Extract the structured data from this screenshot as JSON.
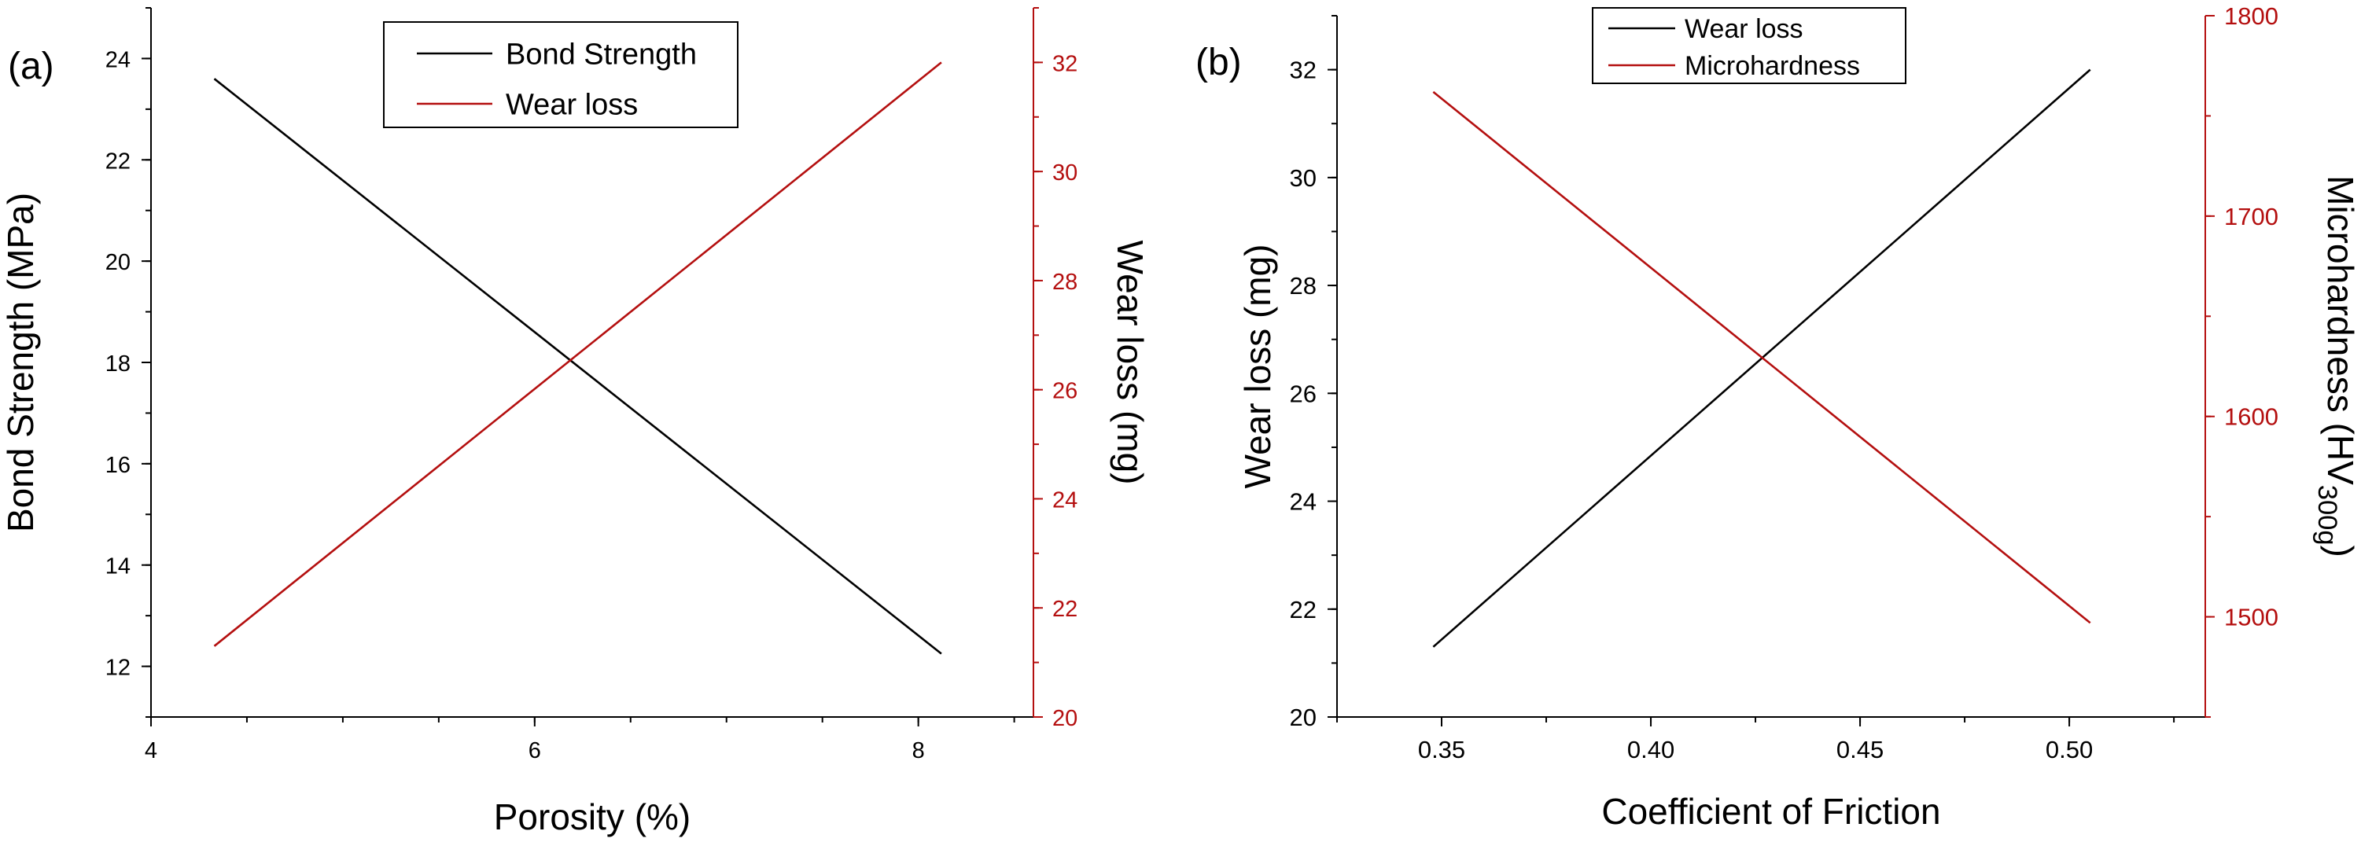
{
  "colors": {
    "black": "#000000",
    "red": "#b40f0f"
  },
  "chart_data": [
    {
      "type": "line",
      "panel_label": "(a)",
      "xlabel": "Porosity (%)",
      "ylabel_left": "Bond Strength (MPa)",
      "ylabel_right": "Wear loss (mg)",
      "xlim": [
        4,
        8.6
      ],
      "ylim_left": [
        11,
        25
      ],
      "ylim_right": [
        20,
        33
      ],
      "x_ticks": [
        "4",
        "6",
        "8"
      ],
      "y_left_ticks": [
        "12",
        "14",
        "16",
        "18",
        "20",
        "22",
        "24"
      ],
      "y_right_ticks": [
        "20",
        "22",
        "24",
        "26",
        "28",
        "30",
        "32"
      ],
      "legend": {
        "position": "top-center"
      },
      "series": [
        {
          "name": "Bond Strength",
          "axis": "left",
          "color": "black",
          "x": [
            4.33,
            8.12
          ],
          "y": [
            23.6,
            12.25
          ]
        },
        {
          "name": "Wear loss",
          "axis": "right",
          "color": "red",
          "x": [
            4.33,
            8.12
          ],
          "y": [
            21.3,
            32.0
          ]
        }
      ]
    },
    {
      "type": "line",
      "panel_label": "(b)",
      "xlabel": "Coefficient of Friction",
      "ylabel_left": "Wear loss (mg)",
      "ylabel_right": "Microhardness (HV",
      "ylabel_right_sub": "300g",
      "ylabel_right_close": ")",
      "xlim": [
        0.325,
        0.5325
      ],
      "ylim_left": [
        20,
        33
      ],
      "ylim_right": [
        1450,
        1800
      ],
      "x_ticks": [
        "0.35",
        "0.40",
        "0.45",
        "0.50"
      ],
      "y_left_ticks": [
        "20",
        "22",
        "24",
        "26",
        "28",
        "30",
        "32"
      ],
      "y_right_ticks": [
        "1500",
        "1600",
        "1700",
        "1800"
      ],
      "legend": {
        "position": "top-center"
      },
      "series": [
        {
          "name": "Wear loss",
          "axis": "left",
          "color": "black",
          "x": [
            0.348,
            0.505
          ],
          "y": [
            21.3,
            32.0
          ]
        },
        {
          "name": "Microhardness",
          "axis": "right",
          "color": "red",
          "x": [
            0.348,
            0.505
          ],
          "y": [
            1762,
            1497
          ]
        }
      ]
    }
  ]
}
